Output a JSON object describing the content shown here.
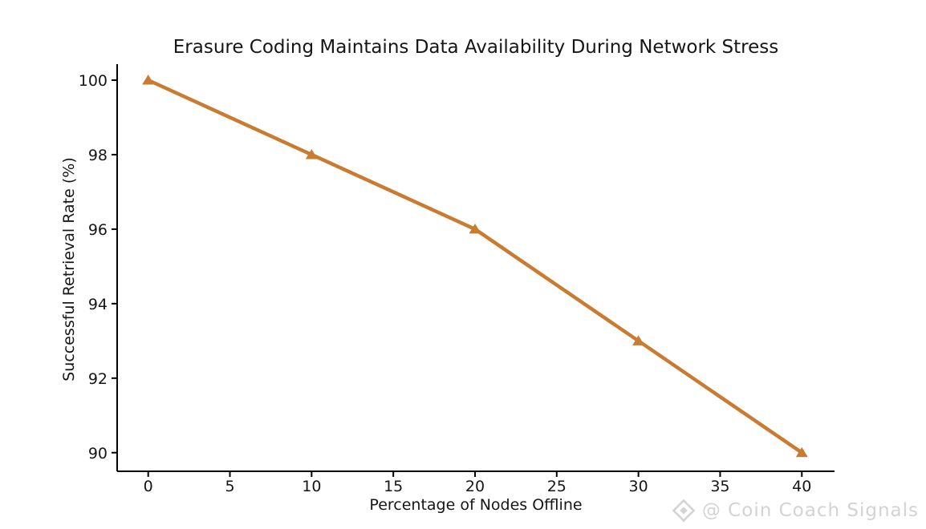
{
  "chart_data": {
    "type": "line",
    "title": "Erasure Coding Maintains Data Availability During Network Stress",
    "xlabel": "Percentage of Nodes Offline",
    "ylabel": "Successful Retrieval Rate (%)",
    "x": [
      0,
      10,
      20,
      30,
      40
    ],
    "series": [
      {
        "values": [
          100,
          98,
          96,
          93,
          90
        ],
        "color": "#CA7B32",
        "marker": "triangle-up",
        "line_width": 4.5
      }
    ],
    "xticks": [
      0,
      5,
      10,
      15,
      20,
      25,
      30,
      35,
      40
    ],
    "yticks": [
      90,
      92,
      94,
      96,
      98,
      100
    ],
    "xlim": [
      -1.9,
      42
    ],
    "ylim": [
      89.5,
      100.43
    ],
    "grid": false,
    "legend": "none",
    "axis_color": "#000000",
    "background": "#ffffff"
  },
  "watermark": {
    "text": "@ Coin Coach Signals",
    "icon": "diamond-logo-icon",
    "color": "#d3d3d3"
  }
}
